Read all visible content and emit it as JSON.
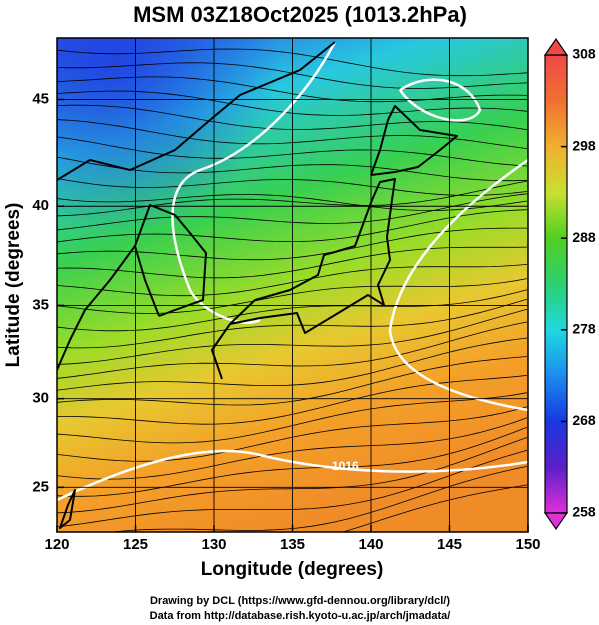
{
  "chart_data": {
    "type": "map",
    "title": "MSM 03Z18Oct2025 (1013.2hPa)",
    "x_label": "Longitude (degrees)",
    "y_label": "Latitude  (degrees)",
    "xlim": [
      120,
      150
    ],
    "xticks": [
      120,
      125,
      130,
      135,
      140,
      145,
      150
    ],
    "ylim": [
      22.4,
      47.7
    ],
    "yticks": [
      25,
      30,
      35,
      40,
      45
    ],
    "grid": true,
    "projection": "mercator",
    "colorbar": {
      "lim": [
        258,
        308
      ],
      "ticks": [
        258,
        268,
        278,
        288,
        298,
        308
      ],
      "colormap": [
        "#e030d8",
        "#5a20c8",
        "#1838e0",
        "#1c8cf0",
        "#20d8e0",
        "#2cd070",
        "#50d020",
        "#c8e030",
        "#f0b030",
        "#f07030",
        "#f04848"
      ]
    },
    "contour_labels": [
      "1016"
    ],
    "credits": [
      "Drawing by DCL (https://www.gfd-dennou.org/library/dcl/)",
      "Data from http://database.rish.kyoto-u.ac.jp/arch/jmadata/"
    ]
  }
}
